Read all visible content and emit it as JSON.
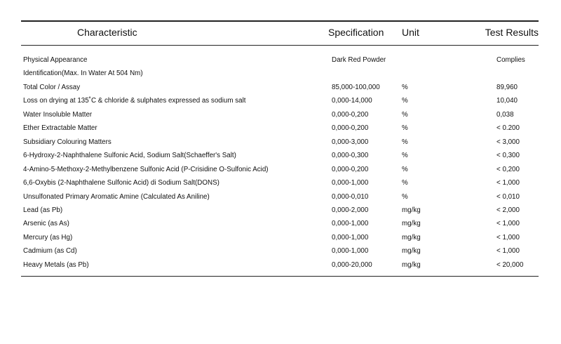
{
  "headers": {
    "characteristic": "Characteristic",
    "specification": "Specification",
    "unit": "Unit",
    "test_results": "Test Results"
  },
  "rows": [
    {
      "characteristic": "Physical Appearance",
      "specification": "Dark Red Powder",
      "unit": "",
      "result": "Complies"
    },
    {
      "characteristic": "Identification(Max. In Water At 504 Nm)",
      "specification": "",
      "unit": "",
      "result": ""
    },
    {
      "characteristic": "Total Color / Assay",
      "specification": "85,000-100,000",
      "unit": "%",
      "result": "89,960"
    },
    {
      "characteristic": "Loss on drying at 135˚C & chloride & sulphates expressed as sodium salt",
      "specification": "0,000-14,000",
      "unit": "%",
      "result": "10,040"
    },
    {
      "characteristic": "Water Insoluble Matter",
      "specification": "0,000-0,200",
      "unit": "%",
      "result": "0,038"
    },
    {
      "characteristic": "Ether Extractable Matter",
      "specification": "0,000-0,200",
      "unit": "%",
      "result": "< 0.200"
    },
    {
      "characteristic": "Subsidiary Colouring Matters",
      "specification": "0,000-3,000",
      "unit": "%",
      "result": "< 3,000"
    },
    {
      "characteristic": "6-Hydroxy-2-Naphthalene Sulfonic Acid, Sodium Salt(Schaeffer's Salt)",
      "specification": "0,000-0,300",
      "unit": "%",
      "result": "< 0,300"
    },
    {
      "characteristic": "4-Amino-5-Methoxy-2-Methylbenzene Sulfonic Acid (P-Crisidine O-Sulfonic Acid)",
      "specification": "0,000-0,200",
      "unit": "%",
      "result": "< 0,200"
    },
    {
      "characteristic": "6,6-Oxybis (2-Naphthalene Sulfonic Acid) di Sodium Salt(DONS)",
      "specification": "0,000-1,000",
      "unit": "%",
      "result": "< 1,000"
    },
    {
      "characteristic": "Unsulfonated Primary Aromatic Amine (Calculated As Aniline)",
      "specification": "0,000-0,010",
      "unit": "%",
      "result": "< 0,010"
    },
    {
      "characteristic": "Lead (as Pb)",
      "specification": "0,000-2,000",
      "unit": "mg/kg",
      "result": "< 2,000"
    },
    {
      "characteristic": "Arsenic (as As)",
      "specification": "0,000-1,000",
      "unit": "mg/kg",
      "result": "< 1,000"
    },
    {
      "characteristic": "Mercury (as Hg)",
      "specification": "0,000-1,000",
      "unit": "mg/kg",
      "result": "< 1,000"
    },
    {
      "characteristic": "Cadmium (as Cd)",
      "specification": "0,000-1,000",
      "unit": "mg/kg",
      "result": "< 1,000"
    },
    {
      "characteristic": "Heavy Metals (as Pb)",
      "specification": "0,000-20,000",
      "unit": "mg/kg",
      "result": "< 20,000"
    }
  ]
}
